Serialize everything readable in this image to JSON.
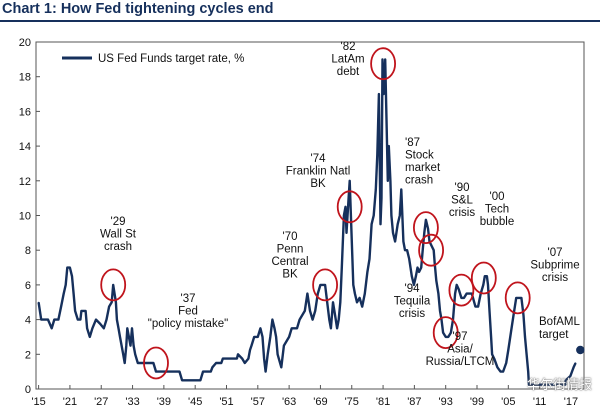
{
  "chart_data": {
    "type": "line",
    "title": "Chart 1: How Fed tightening cycles end",
    "xlabel": "",
    "ylabel": "",
    "xlim": [
      1914.5,
      2019.5
    ],
    "ylim": [
      0,
      20
    ],
    "yticks": [
      0,
      2,
      4,
      6,
      8,
      10,
      12,
      14,
      16,
      18,
      20
    ],
    "xticks": [
      {
        "x": 1915,
        "label": "'15"
      },
      {
        "x": 1921,
        "label": "'21"
      },
      {
        "x": 1927,
        "label": "'27"
      },
      {
        "x": 1933,
        "label": "'33"
      },
      {
        "x": 1939,
        "label": "'39"
      },
      {
        "x": 1945,
        "label": "'45"
      },
      {
        "x": 1951,
        "label": "'51"
      },
      {
        "x": 1957,
        "label": "'57"
      },
      {
        "x": 1963,
        "label": "'63"
      },
      {
        "x": 1969,
        "label": "'69"
      },
      {
        "x": 1975,
        "label": "'75"
      },
      {
        "x": 1981,
        "label": "'81"
      },
      {
        "x": 1987,
        "label": "'87"
      },
      {
        "x": 1993,
        "label": "'93"
      },
      {
        "x": 1999,
        "label": "'99"
      },
      {
        "x": 2005,
        "label": "'05"
      },
      {
        "x": 2011,
        "label": "'11"
      },
      {
        "x": 2017,
        "label": "'17"
      }
    ],
    "grid": false,
    "legend_position": "top-left",
    "series": [
      {
        "name": "US Fed Funds target rate, %",
        "color": "#16305c",
        "points": [
          [
            1915.0,
            5.0
          ],
          [
            1915.5,
            4.0
          ],
          [
            1916.0,
            4.0
          ],
          [
            1916.8,
            4.0
          ],
          [
            1917.5,
            3.5
          ],
          [
            1918.0,
            4.0
          ],
          [
            1918.8,
            4.0
          ],
          [
            1919.3,
            4.75
          ],
          [
            1919.8,
            5.5
          ],
          [
            1920.2,
            6.0
          ],
          [
            1920.5,
            7.0
          ],
          [
            1921.0,
            7.0
          ],
          [
            1921.4,
            6.5
          ],
          [
            1921.7,
            5.5
          ],
          [
            1922.0,
            4.5
          ],
          [
            1922.5,
            4.0
          ],
          [
            1923.0,
            4.0
          ],
          [
            1923.2,
            4.5
          ],
          [
            1924.0,
            4.5
          ],
          [
            1924.3,
            3.5
          ],
          [
            1924.8,
            3.0
          ],
          [
            1925.3,
            3.5
          ],
          [
            1926.0,
            4.0
          ],
          [
            1926.8,
            3.75
          ],
          [
            1927.5,
            3.5
          ],
          [
            1928.0,
            4.0
          ],
          [
            1928.5,
            4.75
          ],
          [
            1929.0,
            5.0
          ],
          [
            1929.3,
            6.0
          ],
          [
            1929.8,
            5.0
          ],
          [
            1930.0,
            4.0
          ],
          [
            1930.3,
            3.5
          ],
          [
            1930.6,
            3.0
          ],
          [
            1930.9,
            2.5
          ],
          [
            1931.2,
            2.0
          ],
          [
            1931.5,
            1.5
          ],
          [
            1931.8,
            2.5
          ],
          [
            1932.0,
            3.5
          ],
          [
            1932.3,
            3.0
          ],
          [
            1932.6,
            2.5
          ],
          [
            1932.9,
            3.5
          ],
          [
            1933.2,
            2.5
          ],
          [
            1933.5,
            2.0
          ],
          [
            1934.0,
            1.5
          ],
          [
            1935.0,
            1.5
          ],
          [
            1936.0,
            1.5
          ],
          [
            1937.0,
            1.5
          ],
          [
            1937.5,
            1.0
          ],
          [
            1942.0,
            1.0
          ],
          [
            1942.5,
            0.5
          ],
          [
            1946.0,
            0.5
          ],
          [
            1946.5,
            1.0
          ],
          [
            1948.0,
            1.0
          ],
          [
            1948.3,
            1.25
          ],
          [
            1949.0,
            1.5
          ],
          [
            1950.0,
            1.5
          ],
          [
            1950.3,
            1.75
          ],
          [
            1953.0,
            1.75
          ],
          [
            1953.2,
            2.0
          ],
          [
            1954.0,
            1.75
          ],
          [
            1954.5,
            1.5
          ],
          [
            1955.2,
            1.75
          ],
          [
            1955.5,
            2.25
          ],
          [
            1955.8,
            2.5
          ],
          [
            1956.3,
            3.0
          ],
          [
            1957.0,
            3.0
          ],
          [
            1957.5,
            3.5
          ],
          [
            1957.9,
            3.0
          ],
          [
            1958.2,
            1.75
          ],
          [
            1958.5,
            1.0
          ],
          [
            1958.9,
            2.0
          ],
          [
            1959.4,
            3.0
          ],
          [
            1959.8,
            4.0
          ],
          [
            1960.2,
            3.5
          ],
          [
            1960.5,
            3.0
          ],
          [
            1960.8,
            2.0
          ],
          [
            1961.5,
            1.25
          ],
          [
            1962.0,
            2.5
          ],
          [
            1962.5,
            2.75
          ],
          [
            1963.0,
            3.0
          ],
          [
            1963.5,
            3.5
          ],
          [
            1964.5,
            3.5
          ],
          [
            1965.0,
            4.0
          ],
          [
            1966.0,
            4.5
          ],
          [
            1966.5,
            5.5
          ],
          [
            1967.0,
            4.5
          ],
          [
            1967.5,
            4.0
          ],
          [
            1968.0,
            4.5
          ],
          [
            1968.5,
            5.5
          ],
          [
            1969.0,
            6.0
          ],
          [
            1969.6,
            6.0
          ],
          [
            1969.9,
            6.0
          ],
          [
            1970.3,
            5.0
          ],
          [
            1970.7,
            4.0
          ],
          [
            1971.0,
            3.5
          ],
          [
            1971.4,
            5.0
          ],
          [
            1971.8,
            4.25
          ],
          [
            1972.2,
            3.5
          ],
          [
            1972.5,
            4.0
          ],
          [
            1972.8,
            5.0
          ],
          [
            1973.1,
            7.0
          ],
          [
            1973.5,
            10.0
          ],
          [
            1973.8,
            10.5
          ],
          [
            1974.0,
            9.0
          ],
          [
            1974.4,
            11.0
          ],
          [
            1974.6,
            12.0
          ],
          [
            1974.9,
            9.5
          ],
          [
            1975.3,
            6.0
          ],
          [
            1975.6,
            5.5
          ],
          [
            1976.0,
            5.0
          ],
          [
            1976.5,
            5.25
          ],
          [
            1977.0,
            4.75
          ],
          [
            1977.5,
            5.5
          ],
          [
            1978.0,
            6.75
          ],
          [
            1978.4,
            7.5
          ],
          [
            1978.8,
            9.5
          ],
          [
            1979.2,
            10.0
          ],
          [
            1979.6,
            11.5
          ],
          [
            1979.9,
            13.5
          ],
          [
            1980.2,
            17.0
          ],
          [
            1980.5,
            9.5
          ],
          [
            1980.7,
            11.0
          ],
          [
            1980.9,
            19.0
          ],
          [
            1981.1,
            17.0
          ],
          [
            1981.4,
            19.0
          ],
          [
            1981.7,
            15.0
          ],
          [
            1981.9,
            12.0
          ],
          [
            1982.1,
            14.0
          ],
          [
            1982.4,
            12.0
          ],
          [
            1982.6,
            10.0
          ],
          [
            1982.9,
            9.0
          ],
          [
            1983.3,
            8.5
          ],
          [
            1983.8,
            9.5
          ],
          [
            1984.2,
            10.0
          ],
          [
            1984.5,
            11.5
          ],
          [
            1984.9,
            8.5
          ],
          [
            1985.2,
            8.0
          ],
          [
            1985.6,
            8.0
          ],
          [
            1986.0,
            7.5
          ],
          [
            1986.5,
            6.5
          ],
          [
            1986.9,
            6.0
          ],
          [
            1987.3,
            6.5
          ],
          [
            1987.6,
            7.0
          ],
          [
            1987.9,
            6.75
          ],
          [
            1988.3,
            7.0
          ],
          [
            1988.6,
            8.0
          ],
          [
            1988.9,
            9.0
          ],
          [
            1989.2,
            9.75
          ],
          [
            1989.6,
            9.25
          ],
          [
            1989.9,
            8.5
          ],
          [
            1990.3,
            8.25
          ],
          [
            1990.7,
            8.0
          ],
          [
            1990.9,
            7.25
          ],
          [
            1991.2,
            6.25
          ],
          [
            1991.6,
            5.5
          ],
          [
            1991.9,
            4.5
          ],
          [
            1992.2,
            4.0
          ],
          [
            1992.5,
            3.25
          ],
          [
            1993.0,
            3.0
          ],
          [
            1993.5,
            3.0
          ],
          [
            1994.0,
            3.25
          ],
          [
            1994.4,
            4.0
          ],
          [
            1994.8,
            5.5
          ],
          [
            1995.1,
            6.0
          ],
          [
            1995.5,
            5.75
          ],
          [
            1996.0,
            5.25
          ],
          [
            1996.5,
            5.25
          ],
          [
            1997.0,
            5.5
          ],
          [
            1997.5,
            5.5
          ],
          [
            1998.0,
            5.5
          ],
          [
            1998.7,
            4.75
          ],
          [
            1999.2,
            4.75
          ],
          [
            1999.7,
            5.5
          ],
          [
            2000.2,
            6.0
          ],
          [
            2000.5,
            6.5
          ],
          [
            2000.9,
            6.5
          ],
          [
            2001.1,
            6.0
          ],
          [
            2001.4,
            4.5
          ],
          [
            2001.7,
            3.0
          ],
          [
            2001.9,
            2.0
          ],
          [
            2002.3,
            1.75
          ],
          [
            2002.9,
            1.25
          ],
          [
            2003.5,
            1.0
          ],
          [
            2004.0,
            1.0
          ],
          [
            2004.6,
            1.5
          ],
          [
            2005.0,
            2.25
          ],
          [
            2005.5,
            3.25
          ],
          [
            2006.0,
            4.25
          ],
          [
            2006.5,
            5.25
          ],
          [
            2007.0,
            5.25
          ],
          [
            2007.5,
            5.25
          ],
          [
            2007.9,
            4.25
          ],
          [
            2008.2,
            3.0
          ],
          [
            2008.5,
            2.0
          ],
          [
            2008.8,
            1.0
          ],
          [
            2008.95,
            0.25
          ],
          [
            2015.9,
            0.25
          ],
          [
            2016.0,
            0.5
          ],
          [
            2016.9,
            0.75
          ],
          [
            2017.2,
            1.0
          ],
          [
            2017.5,
            1.25
          ],
          [
            2017.9,
            1.5
          ]
        ]
      }
    ],
    "forecast": {
      "label": "BofAML target",
      "x": 2018.8,
      "y": 2.25
    },
    "highlights": [
      {
        "x": 1929.3,
        "y": 6.0,
        "label": [
          "'29",
          "Wall St",
          "crash"
        ]
      },
      {
        "x": 1937.5,
        "y": 1.5,
        "label": [
          "'37",
          "Fed",
          "\"policy mistake\""
        ]
      },
      {
        "x": 1969.9,
        "y": 6.0,
        "label": [
          "'70",
          "Penn",
          "Central",
          "BK"
        ]
      },
      {
        "x": 1974.6,
        "y": 10.5,
        "label": [
          "'74",
          "Franklin Natl",
          "BK"
        ]
      },
      {
        "x": 1981.0,
        "y": 18.75,
        "label": [
          "'82",
          "LatAm",
          "debt"
        ]
      },
      {
        "x": 1989.2,
        "y": 9.3,
        "label": [
          "'87",
          "Stock",
          "market",
          "crash"
        ]
      },
      {
        "x": 1990.2,
        "y": 8.0,
        "label": [
          "'90",
          "S&L",
          "crisis"
        ]
      },
      {
        "x": 1993.0,
        "y": 3.25,
        "label": [
          "'94",
          "Tequila",
          "crisis"
        ]
      },
      {
        "x": 1996.0,
        "y": 5.7,
        "label": [
          "'97",
          "Asia/",
          "Russia/LTCM"
        ]
      },
      {
        "x": 2000.3,
        "y": 6.4,
        "label": [
          "'00",
          "Tech",
          "bubble"
        ]
      },
      {
        "x": 2006.8,
        "y": 5.25,
        "label": [
          "'07",
          "Subprime",
          "crisis"
        ]
      }
    ]
  },
  "watermark": "华尔街情报"
}
